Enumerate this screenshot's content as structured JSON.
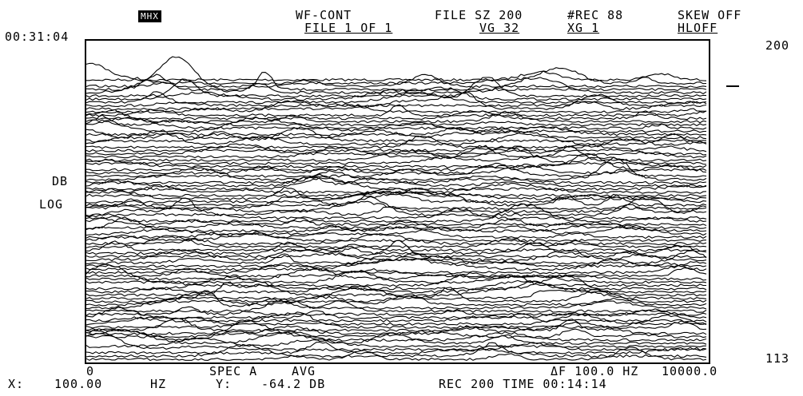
{
  "header": {
    "time": "00:31:04",
    "badge": "MHX",
    "mode": "WF-CONT",
    "file_sz": "FILE SZ 200",
    "rec_count": "#REC 88",
    "skew": "SKEW OFF",
    "file_of": "FILE 1 OF 1",
    "vg": "VG 32",
    "xg": "XG 1",
    "hl": "HLOFF"
  },
  "axis": {
    "record_top": "200",
    "record_bottom": "113",
    "ylabel_db": "DB",
    "ylabel_log": "LOG",
    "x_start": "0",
    "x_end": "10000.0"
  },
  "footer": {
    "spec": "SPEC A",
    "avg": "AVG",
    "delta_f": "ΔF 100.0 HZ",
    "x_label": "X:",
    "x_value": "100.00",
    "x_unit": "HZ",
    "y_label": "Y:",
    "y_value": "-64.2 DB",
    "rec_time": "REC 200 TIME 00:14:14"
  },
  "chart_data": {
    "type": "line",
    "title": "",
    "xlabel": "",
    "ylabel": "DB LOG",
    "xlim": [
      0,
      10000.0
    ],
    "x_unit": "HZ",
    "records": [
      113,
      200
    ],
    "record_count": 88,
    "vertical_gain": 32,
    "note_series": "waterfall of 88 stacked spectra; individual trace values not printed"
  }
}
